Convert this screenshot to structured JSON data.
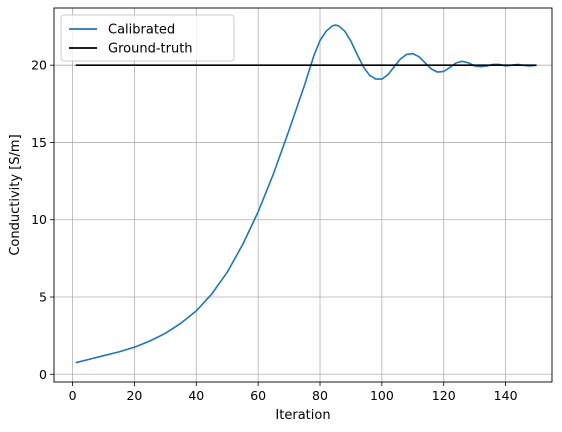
{
  "chart_data": {
    "type": "line",
    "xlabel": "Iteration",
    "ylabel": "Conductivity [S/m]",
    "xlim": [
      -6,
      155
    ],
    "ylim": [
      -0.5,
      23.7
    ],
    "xticks": [
      0,
      20,
      40,
      60,
      80,
      100,
      120,
      140
    ],
    "yticks": [
      0,
      5,
      10,
      15,
      20
    ],
    "grid": true,
    "legend_position": "upper-left",
    "series": [
      {
        "name": "Calibrated",
        "color": "#1f77b4",
        "x": [
          1,
          5,
          10,
          15,
          20,
          25,
          30,
          35,
          40,
          45,
          50,
          55,
          60,
          65,
          70,
          75,
          78,
          80,
          82,
          84,
          85,
          86,
          88,
          90,
          92,
          94,
          96,
          98,
          100,
          102,
          104,
          106,
          108,
          110,
          112,
          114,
          116,
          118,
          120,
          122,
          124,
          126,
          128,
          130,
          132,
          134,
          136,
          138,
          140,
          142,
          144,
          146,
          148,
          150
        ],
        "y": [
          0.75,
          0.95,
          1.2,
          1.45,
          1.75,
          2.15,
          2.65,
          3.3,
          4.1,
          5.2,
          6.6,
          8.4,
          10.5,
          13.0,
          15.8,
          18.7,
          20.6,
          21.6,
          22.2,
          22.55,
          22.6,
          22.55,
          22.2,
          21.55,
          20.7,
          19.9,
          19.35,
          19.1,
          19.1,
          19.4,
          19.9,
          20.4,
          20.7,
          20.75,
          20.55,
          20.15,
          19.75,
          19.55,
          19.6,
          19.85,
          20.15,
          20.25,
          20.15,
          19.95,
          19.9,
          19.95,
          20.05,
          20.05,
          19.95,
          20.0,
          20.05,
          19.98,
          19.95,
          20.0
        ]
      },
      {
        "name": "Ground-truth",
        "color": "#000000",
        "x": [
          1,
          150
        ],
        "y": [
          20,
          20
        ]
      }
    ]
  }
}
